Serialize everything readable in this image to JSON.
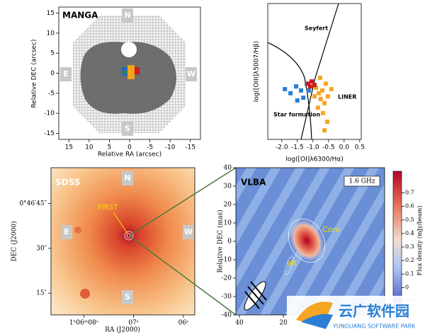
{
  "chart_data": [
    {
      "type": "image",
      "title": "MANGA",
      "xlabel": "Relative RA (arcsec)",
      "ylabel": "Relative DEC (arcsec)",
      "compass": [
        "N",
        "S",
        "E",
        "W"
      ],
      "xlim": [
        17.5,
        -17.5
      ],
      "xticks": [
        15,
        10,
        5,
        0,
        -5,
        -10,
        -15
      ],
      "ylim": [
        -16.5,
        16.5
      ],
      "yticks": [
        15,
        10,
        5,
        0,
        -5,
        -10,
        -15
      ]
    },
    {
      "type": "scatter",
      "xlabel": "log([OI]λ6300/Hα)",
      "ylabel": "log([OIII]λ5007/Hβ)",
      "annotations": [
        "Seyfert",
        "LINER",
        "Star formation"
      ],
      "xlim": [
        -2.45,
        0.55
      ],
      "xticks": [
        {
          "value": -2.0,
          "label": "-2.0"
        },
        -1.5,
        {
          "value": -1.0,
          "label": "-1.0"
        },
        -0.5,
        {
          "value": 0,
          "label": "0.0"
        },
        0.5
      ],
      "ylim": [
        -1.5,
        1.5
      ],
      "series": [
        {
          "color": "#2a7fd4",
          "x": [
            -1.9,
            -1.72,
            -1.54,
            -1.38,
            -1.31,
            -1.2,
            -1.5,
            -1.13
          ],
          "values": [
            -0.39,
            -0.48,
            -0.33,
            -0.42,
            -0.58,
            -0.27,
            -0.64,
            -0.42
          ]
        },
        {
          "color": "#f5a623",
          "x": [
            -0.9,
            -0.81,
            -0.7,
            -0.59,
            -0.75,
            -0.63,
            -0.52,
            -0.84,
            -0.68,
            -0.54,
            -0.63,
            -0.41,
            -0.77,
            -0.95
          ],
          "values": [
            -0.36,
            -0.48,
            -0.42,
            -0.27,
            -0.61,
            -0.7,
            -0.55,
            -0.8,
            -0.92,
            -1.11,
            -1.3,
            -0.39,
            -0.14,
            -0.55
          ]
        },
        {
          "color": "#d11a1a",
          "x": [
            -1.15,
            -1.04,
            -0.95,
            -1.09
          ],
          "values": [
            -0.27,
            -0.22,
            -0.3,
            -0.33
          ]
        }
      ]
    },
    {
      "type": "image",
      "title": "SDSS",
      "xlabel": "RA (J2000)",
      "ylabel": "DEC (J2000)",
      "annotations": [
        "FIRST"
      ],
      "compass": [
        "N",
        "S",
        "E",
        "W"
      ],
      "xlim": [
        8.66,
        5.77
      ],
      "xticks": [
        {
          "value": 8,
          "label": "1ʰ06ᵐ08ˢ"
        },
        {
          "value": 7,
          "label": "07ˢ"
        },
        {
          "value": 6,
          "label": "06ˢ"
        }
      ],
      "ylim": [
        7.7,
        57
      ],
      "yticks": [
        {
          "value": 45,
          "label": "0°46′45″"
        },
        {
          "value": 30,
          "label": "30″"
        },
        {
          "value": 15,
          "label": "15″"
        }
      ]
    },
    {
      "type": "contour",
      "title": "VLBA",
      "ylabel": "Relative DEC (mas)",
      "annotations": [
        "1.6 GHz",
        "Core",
        "Jet"
      ],
      "colorbar_label": "Flux density (mJy/beam)",
      "xlim": [
        41.6,
        -26
      ],
      "xticks": [
        40,
        20
      ],
      "ylim": [
        -40,
        40
      ],
      "yticks": [
        40,
        30,
        20,
        10,
        0,
        -10,
        -20,
        -30,
        -40
      ],
      "clim": [
        -0.16,
        0.86
      ],
      "cticks": [
        0.7,
        0.6,
        0.5,
        0.4,
        0.3,
        0.2,
        0.1,
        0,
        -0.1
      ]
    }
  ],
  "watermark": {
    "title": "云广软件园",
    "subtitle": "YUNGUANG SOFTWARE PARK"
  }
}
